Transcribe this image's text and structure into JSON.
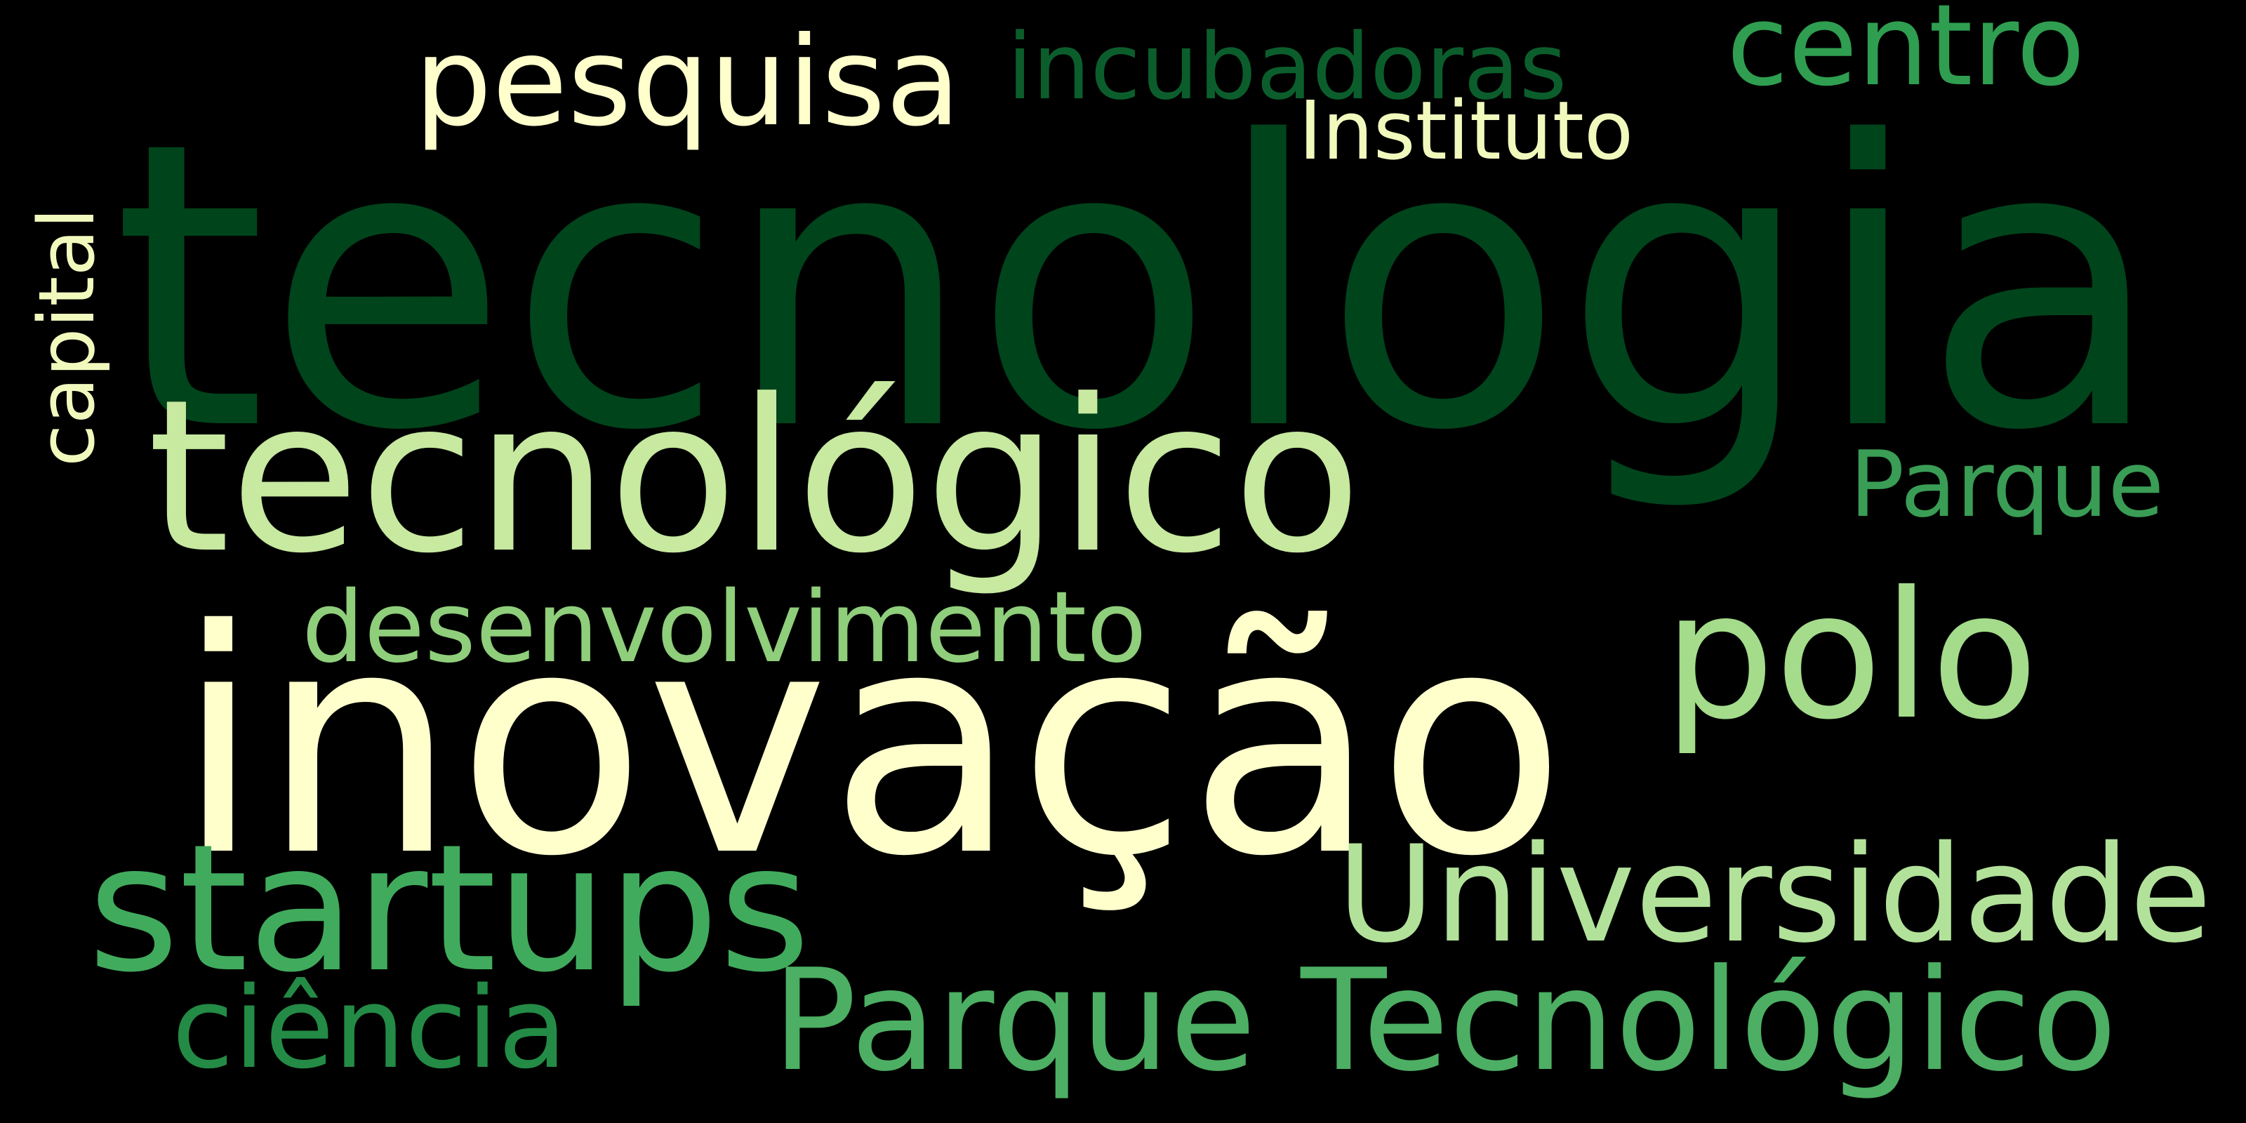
{
  "word_cloud": {
    "background_color": "#000000",
    "words": [
      {
        "text": "tecnologia",
        "color": "#00441b"
      },
      {
        "text": "tecnológico",
        "color": "#c7e9a0"
      },
      {
        "text": "inovação",
        "color": "#ffffcc"
      },
      {
        "text": "polo",
        "color": "#a4dc8b"
      },
      {
        "text": "startups",
        "color": "#41ab5d"
      },
      {
        "text": "Universidade",
        "color": "#b2e29a"
      },
      {
        "text": "Parque Tecnológico",
        "color": "#4caf63"
      },
      {
        "text": "ciência",
        "color": "#238b45"
      },
      {
        "text": "desenvolvimento",
        "color": "#8fce7b"
      },
      {
        "text": "pesquisa",
        "color": "#ffffcc"
      },
      {
        "text": "incubadoras",
        "color": "#0b5e2c"
      },
      {
        "text": "Instituto",
        "color": "#f2f9bd"
      },
      {
        "text": "centro",
        "color": "#2f9e50"
      },
      {
        "text": "Parque",
        "color": "#3a9d55"
      },
      {
        "text": "capital",
        "color": "#f2f9bd"
      }
    ]
  }
}
